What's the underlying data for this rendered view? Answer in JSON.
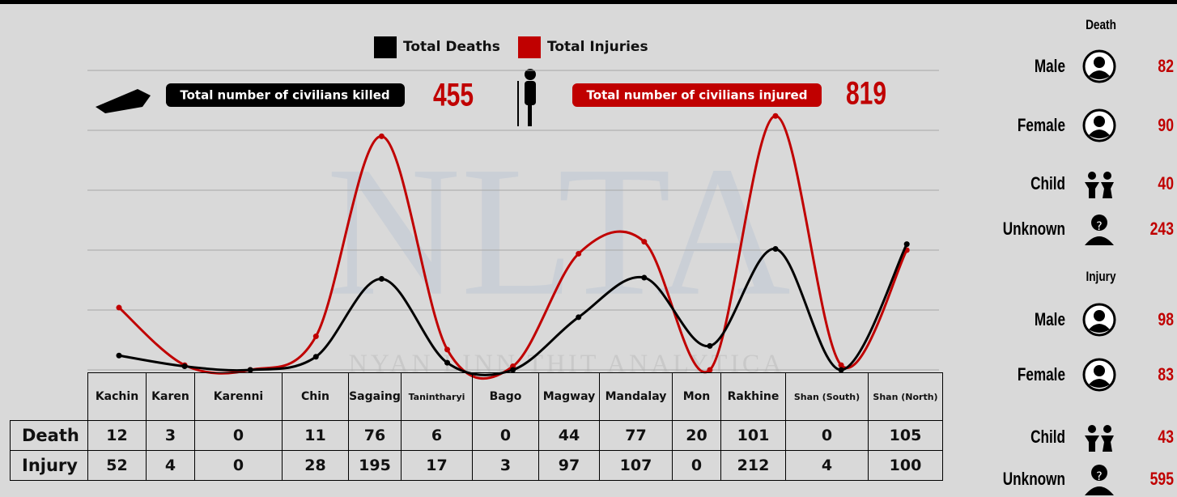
{
  "chart_data": {
    "type": "line",
    "categories": [
      "Kachin",
      "Karen",
      "Karenni",
      "Chin",
      "Sagaing",
      "Tanintharyi",
      "Bago",
      "Magway",
      "Mandalay",
      "Mon",
      "Rakhine",
      "Shan (South)",
      "Shan (North)"
    ],
    "series": [
      {
        "name": "Total Deaths",
        "color": "#000000",
        "values": [
          12,
          3,
          0,
          11,
          76,
          6,
          0,
          44,
          77,
          20,
          101,
          0,
          105
        ]
      },
      {
        "name": "Total Injuries",
        "color": "#c00000",
        "values": [
          52,
          4,
          0,
          28,
          195,
          17,
          3,
          97,
          107,
          0,
          212,
          4,
          100
        ]
      }
    ],
    "ylim": [
      0,
      250
    ],
    "yticks": [
      0,
      50,
      100,
      150,
      200,
      250
    ],
    "grid": true,
    "legend": "top"
  },
  "summary": {
    "killed": {
      "label": "Total number of civilians killed",
      "value": 455
    },
    "injured": {
      "label": "Total number of civilians injured",
      "value": 819
    }
  },
  "table": {
    "row_labels": [
      "Death",
      "Injury"
    ]
  },
  "breakdown": [
    {
      "title": "Death",
      "items": [
        {
          "label": "Male",
          "value": 82
        },
        {
          "label": "Female",
          "value": 90
        },
        {
          "label": "Child",
          "value": 40
        },
        {
          "label": "Unknown",
          "value": 243
        }
      ]
    },
    {
      "title": "Injury",
      "items": [
        {
          "label": "Male",
          "value": 98
        },
        {
          "label": "Female",
          "value": 83
        },
        {
          "label": "Child",
          "value": 43
        },
        {
          "label": "Unknown",
          "value": 595
        }
      ]
    }
  ],
  "watermark": {
    "logo": "NLTA",
    "text": "NYAN LINN THIT ANALYTICA"
  }
}
